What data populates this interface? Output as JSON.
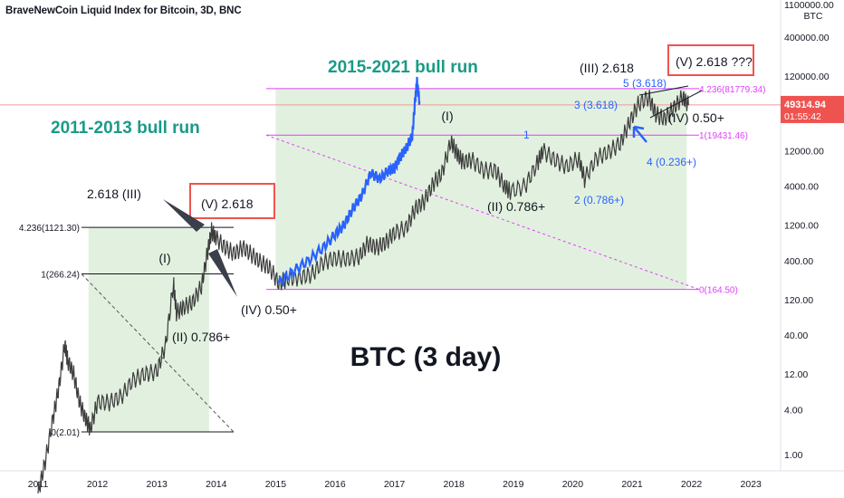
{
  "chart_data": {
    "type": "line",
    "title": "BraveNewCoin Liquid Index for Bitcoin, 3D, BNC",
    "scale": "log",
    "grid": false,
    "currency": "BTC",
    "x_ticks": [
      "2011",
      "2012",
      "2013",
      "2014",
      "2015",
      "2016",
      "2017",
      "2018",
      "2019",
      "2020",
      "2021",
      "2022",
      "2023"
    ],
    "y_ticks": [
      "1100000.00",
      "400000.00",
      "120000.00",
      "40000.00",
      "12000.00",
      "4000.00",
      "1200.00",
      "400.00",
      "120.00",
      "40.00",
      "12.00",
      "4.00",
      "1.00"
    ],
    "last_price": "49314.94",
    "countdown": "01:55:42",
    "colors": {
      "price": "#3d3d3d",
      "highlight": "#2962ff",
      "fib": "#e040fb",
      "zone": "#dff0dc",
      "teal_text": "#1b9a86",
      "red_box": "#ef5350",
      "last_price_bg": "#ef5350",
      "blue_text": "#2962ff"
    },
    "series": [
      {
        "values": [
          [
            2011.0,
            0.3
          ],
          [
            2011.12,
            0.8
          ],
          [
            2011.25,
            3
          ],
          [
            2011.35,
            8
          ],
          [
            2011.45,
            30
          ],
          [
            2011.5,
            18
          ],
          [
            2011.6,
            12
          ],
          [
            2011.7,
            5
          ],
          [
            2011.8,
            3
          ],
          [
            2011.88,
            2.2
          ],
          [
            2012.0,
            5
          ],
          [
            2012.2,
            5
          ],
          [
            2012.4,
            6
          ],
          [
            2012.6,
            10
          ],
          [
            2012.8,
            12
          ],
          [
            2013.0,
            13
          ],
          [
            2013.15,
            30
          ],
          [
            2013.28,
            200
          ],
          [
            2013.33,
            80
          ],
          [
            2013.45,
            95
          ],
          [
            2013.6,
            110
          ],
          [
            2013.75,
            180
          ],
          [
            2013.85,
            500
          ],
          [
            2013.92,
            1000
          ],
          [
            2014.0,
            800
          ],
          [
            2014.15,
            600
          ],
          [
            2014.3,
            500
          ],
          [
            2014.45,
            600
          ],
          [
            2014.6,
            480
          ],
          [
            2014.75,
            380
          ],
          [
            2014.9,
            320
          ],
          [
            2015.05,
            200
          ],
          [
            2015.2,
            230
          ],
          [
            2015.4,
            240
          ],
          [
            2015.6,
            260
          ],
          [
            2015.8,
            380
          ],
          [
            2016.0,
            430
          ],
          [
            2016.2,
            420
          ],
          [
            2016.4,
            450
          ],
          [
            2016.55,
            680
          ],
          [
            2016.7,
            600
          ],
          [
            2016.85,
            700
          ],
          [
            2017.0,
            950
          ],
          [
            2017.2,
            1100
          ],
          [
            2017.35,
            2000
          ],
          [
            2017.5,
            2500
          ],
          [
            2017.65,
            4300
          ],
          [
            2017.8,
            6000
          ],
          [
            2017.95,
            16000
          ],
          [
            2018.05,
            11000
          ],
          [
            2018.15,
            8500
          ],
          [
            2018.3,
            9000
          ],
          [
            2018.5,
            6500
          ],
          [
            2018.7,
            6500
          ],
          [
            2018.85,
            4000
          ],
          [
            2018.95,
            3400
          ],
          [
            2019.2,
            4000
          ],
          [
            2019.4,
            8000
          ],
          [
            2019.5,
            12000
          ],
          [
            2019.7,
            9000
          ],
          [
            2019.9,
            7300
          ],
          [
            2020.1,
            9500
          ],
          [
            2020.2,
            5000
          ],
          [
            2020.4,
            9500
          ],
          [
            2020.6,
            11500
          ],
          [
            2020.8,
            15000
          ],
          [
            2020.95,
            28000
          ],
          [
            2021.1,
            50000
          ],
          [
            2021.28,
            63000
          ],
          [
            2021.4,
            37000
          ],
          [
            2021.55,
            32000
          ],
          [
            2021.7,
            45000
          ],
          [
            2021.85,
            63000
          ],
          [
            2021.95,
            49000
          ]
        ]
      }
    ],
    "highlight_series": {
      "values": [
        [
          2015.05,
          200
        ],
        [
          2015.3,
          290
        ],
        [
          2015.55,
          400
        ],
        [
          2015.8,
          600
        ],
        [
          2016.0,
          900
        ],
        [
          2016.15,
          1200
        ],
        [
          2016.3,
          2000
        ],
        [
          2016.45,
          3000
        ],
        [
          2016.6,
          6000
        ],
        [
          2016.75,
          5000
        ],
        [
          2016.9,
          6500
        ],
        [
          2017.0,
          7000
        ],
        [
          2017.1,
          10000
        ],
        [
          2017.2,
          13000
        ],
        [
          2017.3,
          19000
        ],
        [
          2017.35,
          60000
        ],
        [
          2017.38,
          100000
        ],
        [
          2017.42,
          55000
        ]
      ]
    },
    "levels": {
      "left": [
        {
          "label": "4.236(1121.30)",
          "y": 1121.3
        },
        {
          "label": "1(266.24)",
          "y": 266.24
        },
        {
          "label": "0(2.01)",
          "y": 2.01
        }
      ],
      "right": [
        {
          "label": "4.236(81779.34)",
          "y": 81779.34
        },
        {
          "label": "1(19431.46)",
          "y": 19431.46
        },
        {
          "label": "0(164.50)",
          "y": 164.5
        }
      ]
    },
    "zones": [
      {
        "x0": 2011.85,
        "x1": 2013.88,
        "y0": 2.01,
        "y1": 1121.3
      },
      {
        "x0": 2015.0,
        "x1": 2021.92,
        "y0": 164.5,
        "y1": 81779.34
      }
    ],
    "annotations": {
      "bull1": "2011-2013 bull run",
      "bull2": "2015-2021 bull run",
      "big_label": "BTC (3 day)",
      "w1": "(I)",
      "w2": "(II) 0.786+",
      "w3": "2.618 (III)",
      "w4": "(IV) 0.50+",
      "w5": "(V) 2.618",
      "r1": "(I)",
      "r2": "(II) 0.786+",
      "r3": "(III) 2.618",
      "r4": "(IV) 0.50+",
      "r5": "(V) 2.618 ???",
      "b1": "1",
      "b2": "2 (0.786+)",
      "b3": "3 (3.618)",
      "b4": "4 (0.236+)",
      "b5": "5 (3.618)"
    }
  }
}
